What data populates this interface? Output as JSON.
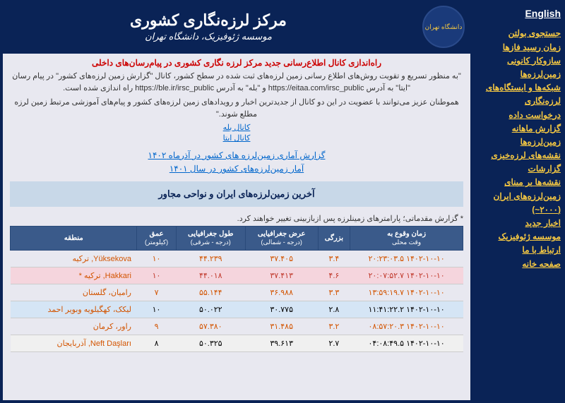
{
  "header": {
    "title": "مرکز لرزه‌نگاری کشوری",
    "subtitle": "موسسه ژئوفیزیک، دانشگاه تهران",
    "logo_text": "دانشگاه تهران"
  },
  "sidebar": {
    "english": "English",
    "links": [
      "جستجوی بولتن",
      "زمان رسید فازها",
      "سازوکار کانونی زمین‌لرزه‌ها",
      "شبکه‌ها و ایستگاه‌های لرزه‌نگاری",
      "درخواست داده",
      "گزارش ماهانه زمین‌لرزه‌ها",
      "نقشه‌های لرزه‌خیزی",
      "گزارشات",
      "نقشه‌ها بر مبنای زمین‌لرزه‌های ایران (۲۰۰۰~)",
      "اخبار جدید",
      "موسسه ژئوفیزیک",
      "ارتباط با ما",
      "صفحه خانه"
    ]
  },
  "announcement": {
    "title": "راه‌اندازی کانال اطلاع‌رسانی جدید مرکز لرزه نگاری کشوری در پیام‌رسان‌های داخلی",
    "text1": "\"به منظور تسریع و تقویت روش‌های اطلاع رسانی زمین لرزه‌های ثبت شده در سطح کشور، کانال \"گزارش زمین لرزه‌های کشور\" در پیام رسان \"ایتا\" به آدرس https://eitaa.com/irsc_public و \"بله\" به آدرس https://ble.ir/irsc_public راه اندازی شده است.",
    "text2": "هموطنان عزیز می‌توانند با عضویت در این دو کانال از جدیدترین اخبار و رویدادهای زمین لرزه‌های کشور و پیام‌های آموزشی مرتبط زمین لرزه مطلع شوند.\"",
    "channel1": "کانال بله",
    "channel2": "کانال ایتا"
  },
  "reports": {
    "link1": "گزارش آماری زمین‌لرزه های کشور در آذرماه ۱۴۰۲",
    "link2": "آمار زمین‌لرزه‌های کشور در سال ۱۴۰۱"
  },
  "section_title": "آخرین زمین‌لرزه‌های ایران و نواحی مجاور",
  "note": "* گزارش مقدماتی؛ پارامترهای زمینلرزه پس ازبازبینی تغییر خواهند کرد.",
  "table": {
    "headers": {
      "time": "زمان وقوع به",
      "time_sub": "وقت محلی",
      "mag": "بزرگی",
      "lat": "عرض جغرافیایی",
      "lat_sub": "(درجه - شمالی)",
      "lon": "طول جغرافیایی",
      "lon_sub": "(درجه - شرقی)",
      "depth": "عمق",
      "depth_sub": "(کیلومتر)",
      "region": "منطقه"
    },
    "rows": [
      {
        "class": "row-orange",
        "time": "۱۴۰۲-۱۰-۱۰ ۲۰:۲۳:۰۳.۵",
        "mag": "۳.۴",
        "lat": "۳۷.۴۰۵",
        "lon": "۴۴.۲۳۹",
        "depth": "۱۰",
        "region": "Yüksekova, ترکیه"
      },
      {
        "class": "row-pink",
        "time": "۱۴۰۲-۱۰-۱۰ ۲۰:۰۷:۵۲.۷",
        "mag": "۴.۶",
        "lat": "۳۷.۴۱۳",
        "lon": "۴۴.۰۱۸",
        "depth": "۱۰",
        "region": "Hakkari, ترکیه *"
      },
      {
        "class": "row-orange",
        "time": "۱۴۰۲-۱۰-۱۰ ۱۳:۵۹:۱۹.۷",
        "mag": "۳.۳",
        "lat": "۳۶.۹۸۸",
        "lon": "۵۵.۱۴۴",
        "depth": "۷",
        "region": "رامیان، گلستان"
      },
      {
        "class": "row-blue",
        "time": "۱۴۰۲-۱۰-۱۰ ۱۱:۴۱:۲۲.۲",
        "mag": "۲.۸",
        "lat": "۳۰.۷۷۵",
        "lon": "۵۰.۰۲۲",
        "depth": "۱۰",
        "region": "لیکک، کهگیلویه وبویر احمد"
      },
      {
        "class": "row-orange",
        "time": "۱۴۰۲-۱۰-۱۰ ۰۸:۵۷:۲۰.۳",
        "mag": "۳.۲",
        "lat": "۳۱.۴۸۵",
        "lon": "۵۷.۳۸۰",
        "depth": "۹",
        "region": "راور، کرمان"
      },
      {
        "class": "row-gray",
        "time": "۱۴۰۲-۱۰-۱۰ ۰۴:۰۸:۴۹.۵",
        "mag": "۲.۷",
        "lat": "۳۹.۶۱۳",
        "lon": "۵۰.۳۲۵",
        "depth": "۸",
        "region": "Neft Daşları, آذربایجان"
      }
    ]
  }
}
